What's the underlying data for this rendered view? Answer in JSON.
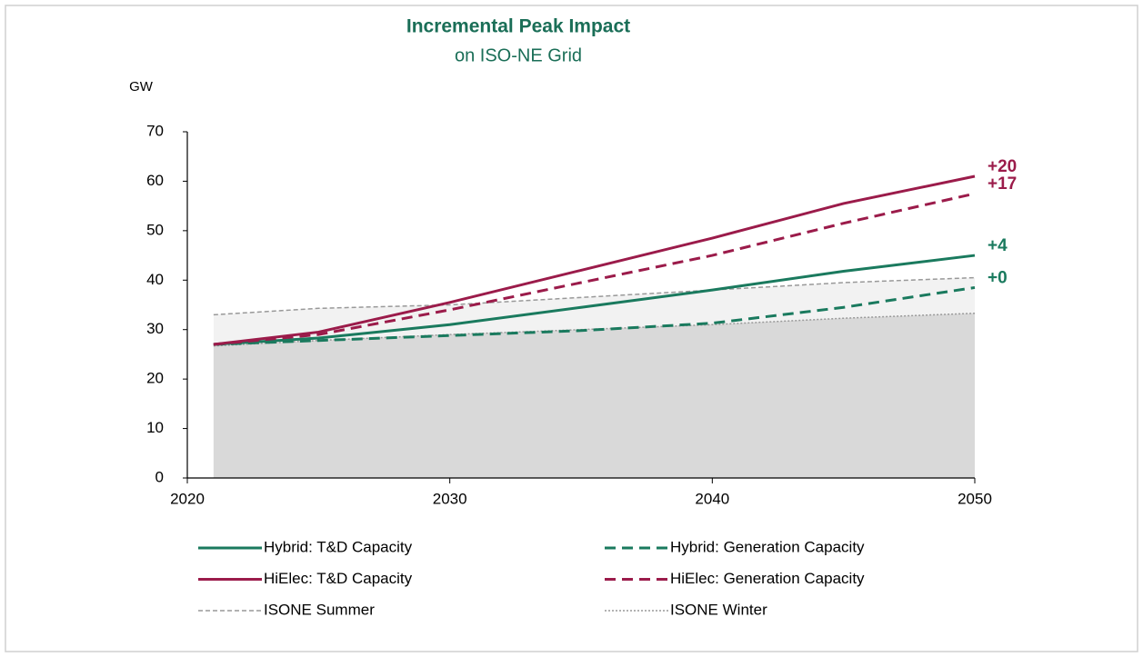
{
  "chart_data": {
    "type": "line",
    "title": "Incremental Peak Impact",
    "subtitle": "on ISO-NE Grid",
    "y_label": "GW",
    "x": [
      2021,
      2025,
      2030,
      2035,
      2040,
      2045,
      2050
    ],
    "xlim": [
      2020,
      2050
    ],
    "xticks": [
      2020,
      2030,
      2040,
      2050
    ],
    "ylim": [
      0,
      70
    ],
    "yticks": [
      0,
      10,
      20,
      30,
      40,
      50,
      60,
      70
    ],
    "grid": false,
    "series": [
      {
        "name": "Hybrid: T&D Capacity",
        "color": "#1a7a5e",
        "dash": "solid",
        "values": [
          27,
          28.3,
          31,
          34.5,
          38,
          41.8,
          45
        ],
        "end_label": "+4"
      },
      {
        "name": "Hybrid: Generation Capacity",
        "color": "#1a7a5e",
        "dash": "dashed",
        "values": [
          27,
          27.8,
          28.8,
          29.8,
          31.3,
          34.5,
          38.5
        ],
        "end_label": "+0"
      },
      {
        "name": "HiElec: T&D Capacity",
        "color": "#9b1b4a",
        "dash": "solid",
        "values": [
          27,
          29.5,
          35.5,
          42,
          48.5,
          55.5,
          61
        ],
        "end_label": "+20"
      },
      {
        "name": "HiElec: Generation Capacity",
        "color": "#9b1b4a",
        "dash": "dashed",
        "values": [
          27,
          29,
          34,
          39.5,
          45,
          51.5,
          57.5
        ],
        "end_label": "+17"
      },
      {
        "name": "ISONE Summer",
        "color": "#999999",
        "dash": "fine-dashed",
        "fill": "#f2f2f2",
        "values": [
          33,
          34.3,
          35,
          36.5,
          38,
          39.5,
          40.5
        ]
      },
      {
        "name": "ISONE Winter",
        "color": "#999999",
        "dash": "dotted",
        "fill": "#d9d9d9",
        "values": [
          26.7,
          27.8,
          29,
          30,
          31,
          32.3,
          33.3
        ]
      }
    ]
  }
}
